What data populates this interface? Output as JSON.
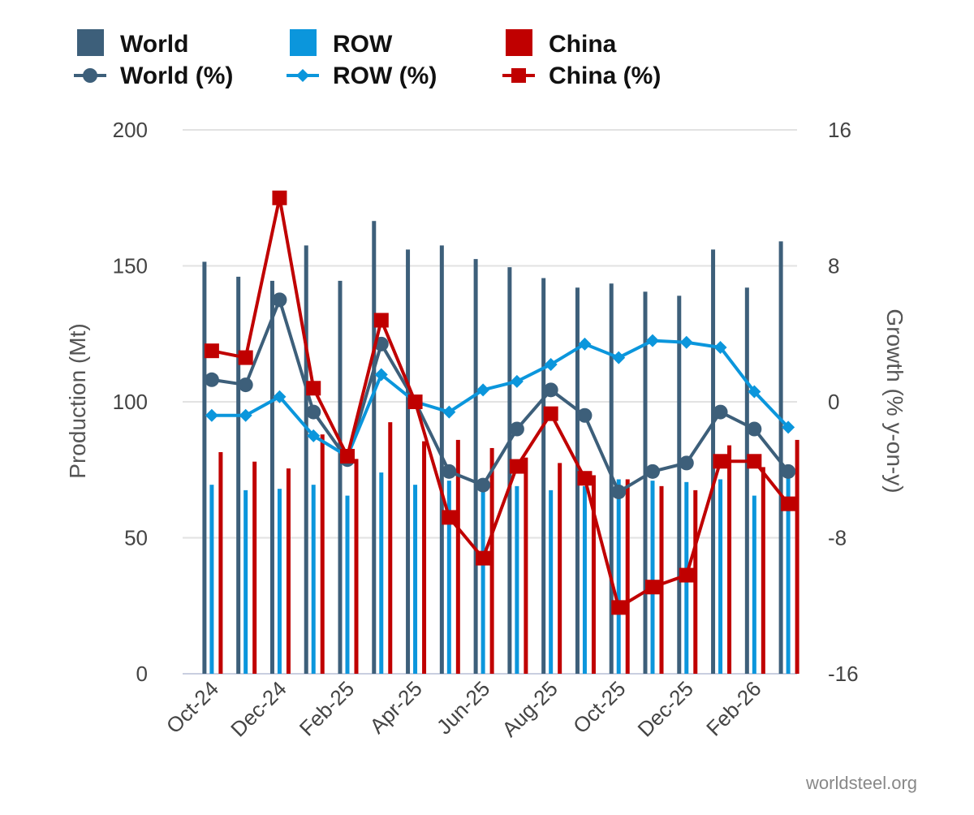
{
  "chart_data": {
    "type": "bar",
    "months": [
      "Oct-24",
      "Nov-24",
      "Dec-24",
      "Jan-25",
      "Feb-25",
      "Mar-25",
      "Apr-25",
      "May-25",
      "Jun-25",
      "Jul-25",
      "Aug-25",
      "Sep-25",
      "Oct-25",
      "Nov-25",
      "Dec-25",
      "Jan-26",
      "Feb-26",
      "Mar-26"
    ],
    "tick_labels": [
      "Oct-24",
      "Dec-24",
      "Feb-25",
      "Apr-25",
      "Jun-25",
      "Aug-25",
      "Oct-25",
      "Dec-25",
      "Feb-26"
    ],
    "bar_series": [
      {
        "name": "World",
        "color": "#3d5f7a",
        "values": [
          151.5,
          146.0,
          144.5,
          157.5,
          144.5,
          166.5,
          156.0,
          157.5,
          152.5,
          149.5,
          145.5,
          142.0,
          143.5,
          140.5,
          139.0,
          156.0,
          142.0,
          159.0
        ]
      },
      {
        "name": "ROW",
        "color": "#0b96dc",
        "values": [
          69.5,
          67.5,
          68.0,
          69.5,
          65.5,
          74.0,
          69.5,
          71.0,
          69.5,
          69.0,
          67.5,
          69.0,
          71.5,
          71.0,
          70.5,
          71.5,
          65.5,
          72.0
        ]
      },
      {
        "name": "China",
        "color": "#c00000",
        "values": [
          81.5,
          78.0,
          75.5,
          88.0,
          79.0,
          92.5,
          85.5,
          86.0,
          83.0,
          79.5,
          77.5,
          73.0,
          71.5,
          69.0,
          67.5,
          84.0,
          76.0,
          86.0
        ]
      }
    ],
    "line_series": [
      {
        "name": "World (%)",
        "color": "#3d5f7a",
        "marker": "circle",
        "values": [
          1.3,
          1.0,
          6.0,
          -0.6,
          -3.4,
          3.4,
          0.0,
          -4.1,
          -4.9,
          -1.6,
          0.7,
          -0.8,
          -5.3,
          -4.1,
          -3.6,
          -0.6,
          -1.6,
          -4.1
        ]
      },
      {
        "name": "ROW (%)",
        "color": "#0b96dc",
        "marker": "diamond",
        "values": [
          -0.8,
          -0.8,
          0.3,
          -2.0,
          -3.2,
          1.6,
          0.0,
          -0.6,
          0.7,
          1.2,
          2.2,
          3.4,
          2.6,
          3.6,
          3.5,
          3.2,
          0.6,
          -1.5
        ]
      },
      {
        "name": "China (%)",
        "color": "#c00000",
        "marker": "square",
        "values": [
          3.0,
          2.6,
          12.0,
          0.8,
          -3.2,
          4.8,
          0.0,
          -6.8,
          -9.2,
          -3.8,
          -0.7,
          -4.5,
          -12.1,
          -10.9,
          -10.2,
          -3.5,
          -3.5,
          -6.0
        ]
      }
    ],
    "legend": [
      "World",
      "ROW",
      "China",
      "World (%)",
      "ROW (%)",
      "China (%)"
    ],
    "legend_position": "top",
    "ylabel_left": "Production (Mt)",
    "ylabel_right": "Growth (% y-on-y)",
    "ylim_left": [
      0,
      200
    ],
    "ylim_right": [
      -16,
      16
    ],
    "yticks_left": [
      "0",
      "50",
      "100",
      "150",
      "200"
    ],
    "yticks_right": [
      "-16",
      "-8",
      "0",
      "8",
      "16"
    ],
    "grid": true
  },
  "credit": "worldsteel.org"
}
